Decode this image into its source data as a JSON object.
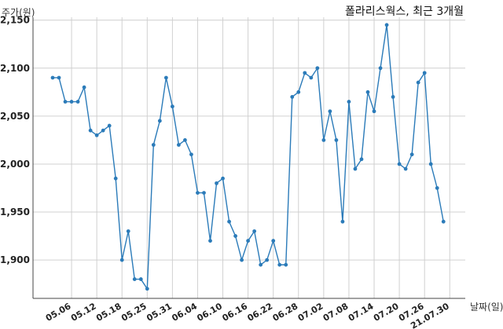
{
  "chart_data": {
    "type": "line",
    "title": "폴라리스웍스, 최근 3개월",
    "xlabel": "날짜(일)",
    "ylabel": "주가(원)",
    "ylim": [
      1860,
      2153
    ],
    "yticks": [
      "2,150",
      "2,100",
      "2,050",
      "2,000",
      "1,950",
      "1,900"
    ],
    "ytick_values": [
      2150,
      2100,
      2050,
      2000,
      1950,
      1900
    ],
    "grid": true,
    "line_color": "#2b7bb9",
    "x_tick_labels": [
      "05.06",
      "05.12",
      "05.18",
      "05.25",
      "05.31",
      "06.04",
      "06.10",
      "06.16",
      "06.22",
      "06.28",
      "07.02",
      "07.08",
      "07.14",
      "07.20",
      "07.26",
      "21.07.30"
    ],
    "x_tick_index": [
      3,
      7,
      11,
      15,
      19,
      23,
      27,
      31,
      35,
      39,
      43,
      47,
      51,
      55,
      59,
      63
    ],
    "values": [
      2090,
      2090,
      2065,
      2065,
      2065,
      2080,
      2035,
      2030,
      2035,
      2040,
      1985,
      1900,
      1930,
      1880,
      1880,
      1870,
      2020,
      2045,
      2090,
      2060,
      2020,
      2025,
      2010,
      1970,
      1970,
      1920,
      1980,
      1985,
      1940,
      1925,
      1900,
      1920,
      1930,
      1895,
      1900,
      1920,
      1895,
      1895,
      2070,
      2075,
      2095,
      2090,
      2100,
      2025,
      2055,
      2025,
      1940,
      2065,
      1995,
      2005,
      2075,
      2055,
      2100,
      2145,
      2070,
      2000,
      1995,
      2010,
      2085,
      2095,
      2000,
      1975,
      1940
    ]
  }
}
